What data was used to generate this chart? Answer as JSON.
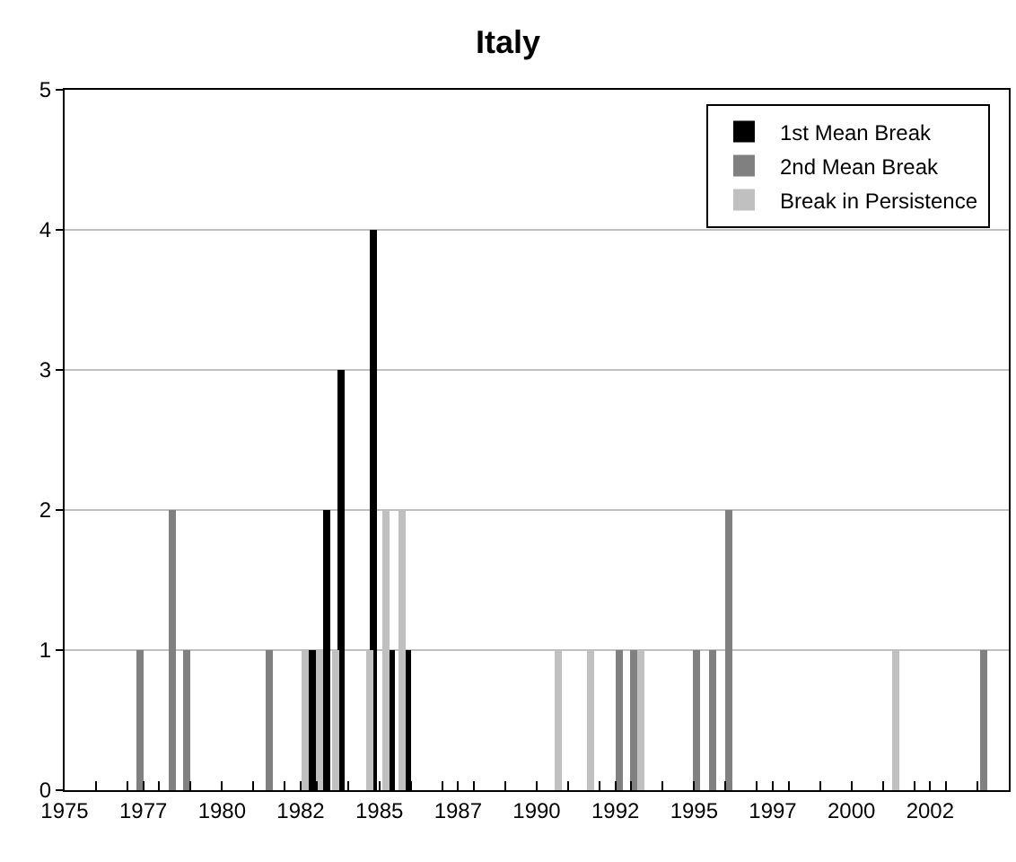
{
  "chart_data": {
    "type": "bar",
    "title": "Italy",
    "series": [
      {
        "name": "1st Mean Break",
        "color": "#000000",
        "x": [
          1982.85,
          1983.35,
          1983.8,
          1984.8,
          1985.4,
          1985.9
        ],
        "values": [
          1,
          2,
          3,
          4,
          1,
          1
        ]
      },
      {
        "name": "2nd Mean Break",
        "color": "#808080",
        "x": [
          1977.4,
          1978.4,
          1978.9,
          1981.5,
          1992.6,
          1993.1,
          1995.1,
          1995.6,
          1996.1,
          2004.2
        ],
        "values": [
          1,
          2,
          1,
          1,
          1,
          1,
          1,
          1,
          2,
          1
        ]
      },
      {
        "name": "Break in Persistence",
        "color": "#c0c0c0",
        "x": [
          1982.65,
          1983.1,
          1983.6,
          1984.7,
          1985.2,
          1985.7,
          1990.7,
          1991.7,
          1993.3,
          2001.4
        ],
        "values": [
          1,
          1,
          1,
          1,
          2,
          2,
          1,
          1,
          1,
          1
        ]
      }
    ],
    "xlim": [
      1975,
      2005
    ],
    "xticks": [
      {
        "value": 1975,
        "label": "1975"
      },
      {
        "value": 1976,
        "label": null
      },
      {
        "value": 1977,
        "label": null
      },
      {
        "value": 1977.5,
        "label": "1977"
      },
      {
        "value": 1978,
        "label": null
      },
      {
        "value": 1979,
        "label": null
      },
      {
        "value": 1980,
        "label": "1980"
      },
      {
        "value": 1981,
        "label": null
      },
      {
        "value": 1982,
        "label": null
      },
      {
        "value": 1982.5,
        "label": "1982"
      },
      {
        "value": 1983,
        "label": null
      },
      {
        "value": 1984,
        "label": null
      },
      {
        "value": 1985,
        "label": "1985"
      },
      {
        "value": 1986,
        "label": null
      },
      {
        "value": 1987,
        "label": null
      },
      {
        "value": 1987.5,
        "label": "1987"
      },
      {
        "value": 1988,
        "label": null
      },
      {
        "value": 1989,
        "label": null
      },
      {
        "value": 1990,
        "label": "1990"
      },
      {
        "value": 1991,
        "label": null
      },
      {
        "value": 1992,
        "label": null
      },
      {
        "value": 1992.5,
        "label": "1992"
      },
      {
        "value": 1993,
        "label": null
      },
      {
        "value": 1994,
        "label": null
      },
      {
        "value": 1995,
        "label": "1995"
      },
      {
        "value": 1996,
        "label": null
      },
      {
        "value": 1997,
        "label": null
      },
      {
        "value": 1997.5,
        "label": "1997"
      },
      {
        "value": 1998,
        "label": null
      },
      {
        "value": 1999,
        "label": null
      },
      {
        "value": 2000,
        "label": "2000"
      },
      {
        "value": 2001,
        "label": null
      },
      {
        "value": 2002,
        "label": null
      },
      {
        "value": 2002.5,
        "label": "2002"
      },
      {
        "value": 2003,
        "label": null
      },
      {
        "value": 2004,
        "label": null
      },
      {
        "value": 2005,
        "label": null
      }
    ],
    "ylim": [
      0,
      5
    ],
    "yticks": [
      0,
      1,
      2,
      3,
      4,
      5
    ],
    "grid": "y",
    "legend": "top right"
  }
}
